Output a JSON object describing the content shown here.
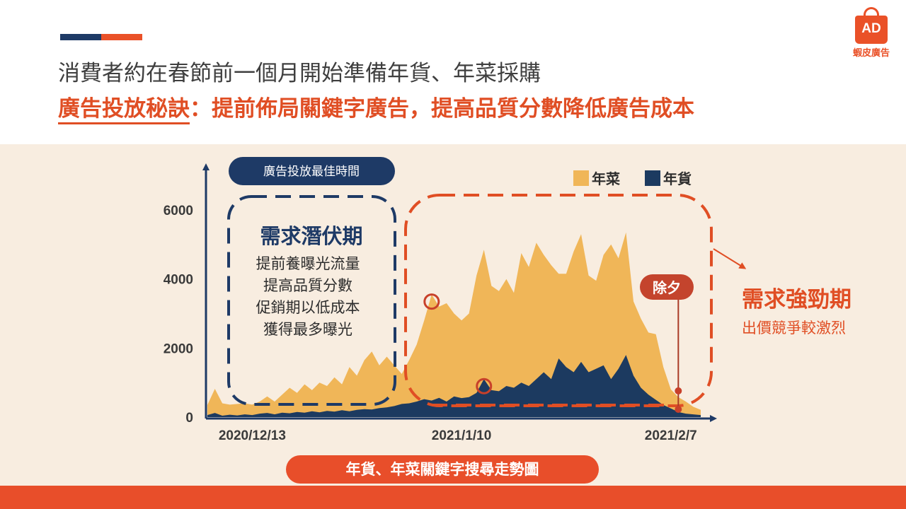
{
  "header": {
    "headline": "消費者約在春節前一個月開始準備年貨、年菜採購",
    "sub_underlined": "廣告投放秘訣",
    "sub_rest": "：提前佈局關鍵字廣告，提高品質分數降低廣告成本"
  },
  "logo": {
    "badge": "AD",
    "name": "蝦皮廣告"
  },
  "callouts": {
    "best_time_label": "廣告投放最佳時間",
    "latent_title": "需求潛伏期",
    "latent_lines": [
      "提前養曝光流量",
      "提高品質分數",
      "促銷期以低成本",
      "獲得最多曝光"
    ],
    "strong_title": "需求強勁期",
    "strong_sub": "出價競爭較激烈",
    "new_year_eve": "除夕"
  },
  "colors": {
    "yearfood": "#f0b658",
    "newyear_goods": "#1c3a60",
    "accent": "#e04e24",
    "navy": "#1e3a66",
    "background": "#f8ede0"
  },
  "chart_data": {
    "type": "area",
    "title": "年貨、年菜關鍵字搜尋走勢圖",
    "xlabel": "",
    "ylabel": "",
    "ylim": [
      0,
      7200
    ],
    "yticks": [
      0,
      2000,
      4000,
      6000
    ],
    "xtick_labels": [
      {
        "label": "2020/12/13",
        "day": 6
      },
      {
        "label": "2021/1/10",
        "day": 34
      },
      {
        "label": "2021/2/7",
        "day": 62
      }
    ],
    "x_start": "2020/12/7",
    "legend": [
      {
        "name": "年菜",
        "color": "#f0b658"
      },
      {
        "name": "年貨",
        "color": "#1c3a60"
      }
    ],
    "legend_position": "top-right",
    "grid": false,
    "series": [
      {
        "name": "年菜",
        "values": [
          350,
          820,
          400,
          360,
          380,
          400,
          360,
          450,
          600,
          450,
          650,
          850,
          700,
          950,
          780,
          1000,
          900,
          1150,
          950,
          1450,
          1200,
          1650,
          1900,
          1500,
          1750,
          1500,
          1250,
          1650,
          2100,
          2800,
          3550,
          3200,
          3300,
          3000,
          2800,
          3000,
          4100,
          4850,
          3800,
          3650,
          4000,
          3600,
          4750,
          4350,
          5050,
          4700,
          4400,
          4150,
          4150,
          4800,
          5300,
          4100,
          3950,
          4700,
          5000,
          4600,
          5350,
          3350,
          2850,
          2450,
          2400,
          1450,
          800,
          580,
          450,
          300,
          210
        ]
      },
      {
        "name": "年貨",
        "values": [
          60,
          120,
          40,
          70,
          50,
          80,
          60,
          100,
          120,
          80,
          130,
          110,
          150,
          130,
          170,
          140,
          180,
          160,
          200,
          170,
          210,
          230,
          220,
          260,
          280,
          320,
          380,
          400,
          450,
          520,
          480,
          560,
          450,
          600,
          550,
          580,
          700,
          1100,
          780,
          750,
          900,
          850,
          1000,
          900,
          1100,
          1300,
          1100,
          1700,
          1450,
          1300,
          1600,
          1300,
          1400,
          1500,
          1100,
          1400,
          1800,
          1200,
          850,
          650,
          500,
          350,
          250,
          150,
          100,
          80,
          60
        ]
      }
    ]
  }
}
